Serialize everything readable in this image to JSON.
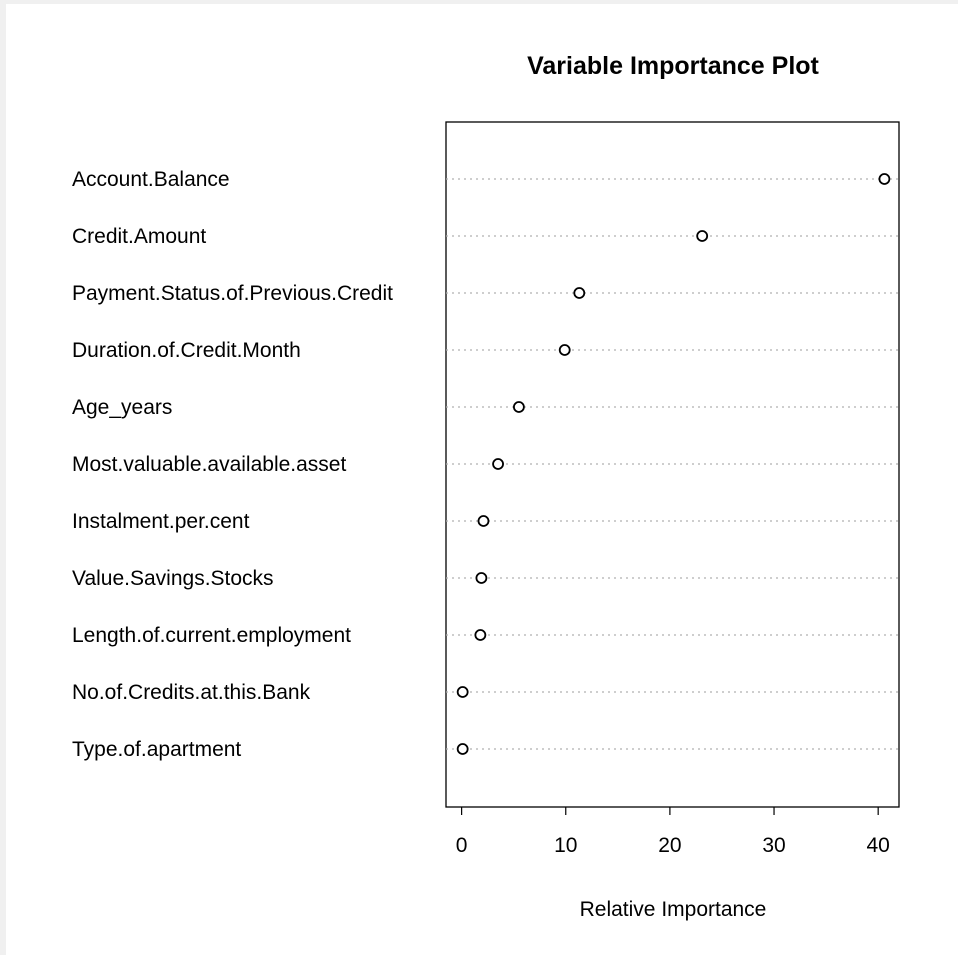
{
  "chart_data": {
    "type": "scatter",
    "title": "Variable Importance Plot",
    "xlabel": "Relative Importance",
    "ylabel": "",
    "xlim": [
      -1.5,
      42.0
    ],
    "xticks": [
      "0",
      "10",
      "20",
      "30",
      "40"
    ],
    "grid": "horizontal dotted lines",
    "categories": [
      "Account.Balance",
      "Credit.Amount",
      "Payment.Status.of.Previous.Credit",
      "Duration.of.Credit.Month",
      "Age_years",
      "Most.valuable.available.asset",
      "Instalment.per.cent",
      "Value.Savings.Stocks",
      "Length.of.current.employment",
      "No.of.Credits.at.this.Bank",
      "Type.of.apartment"
    ],
    "values": [
      40.6,
      23.1,
      11.3,
      9.9,
      5.5,
      3.5,
      2.1,
      1.9,
      1.8,
      0.1,
      0.1
    ]
  }
}
